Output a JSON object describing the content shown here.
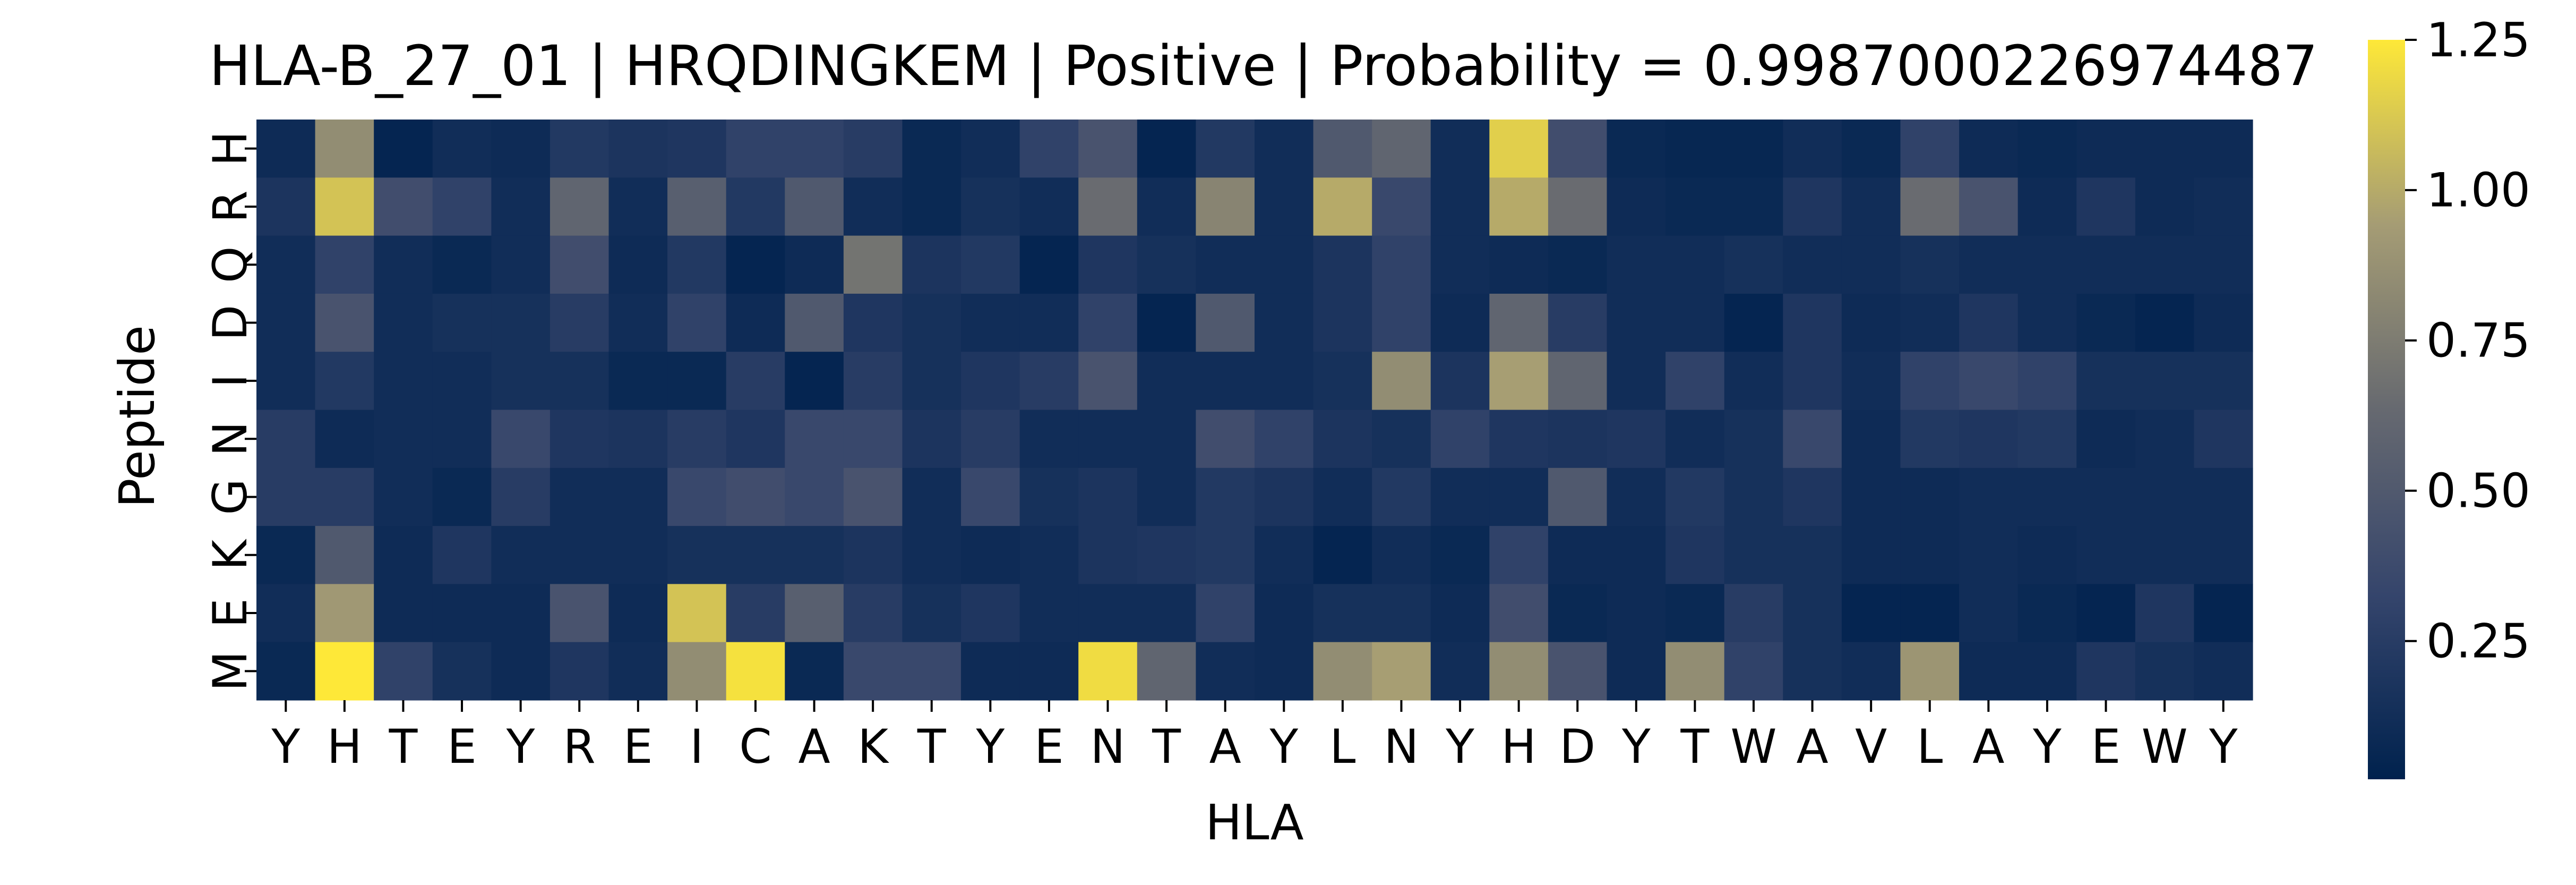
{
  "chart_data": {
    "type": "heatmap",
    "title": "HLA-B_27_01 | HRQDINGKEM | Positive | Probability = 0.9987000226974487",
    "xlabel": "HLA",
    "ylabel": "Peptide",
    "x_labels": [
      "Y",
      "H",
      "T",
      "E",
      "Y",
      "R",
      "E",
      "I",
      "C",
      "A",
      "K",
      "T",
      "Y",
      "E",
      "N",
      "T",
      "A",
      "Y",
      "L",
      "N",
      "Y",
      "H",
      "D",
      "Y",
      "T",
      "W",
      "A",
      "V",
      "L",
      "A",
      "Y",
      "E",
      "W",
      "Y"
    ],
    "y_labels": [
      "H",
      "R",
      "Q",
      "D",
      "I",
      "N",
      "G",
      "K",
      "E",
      "M"
    ],
    "colorbar": {
      "ticks": [
        0.25,
        0.5,
        0.75,
        1.0,
        1.25
      ],
      "tick_labels": [
        "0.25",
        "0.50",
        "0.75",
        "1.00",
        "1.25"
      ],
      "vmin": 0.02,
      "vmax": 1.25,
      "colormap": "cividis"
    },
    "grid": false,
    "legend": "colorbar-right",
    "values": [
      [
        0.1,
        0.85,
        0.05,
        0.12,
        0.1,
        0.22,
        0.18,
        0.2,
        0.3,
        0.3,
        0.25,
        0.08,
        0.12,
        0.3,
        0.45,
        0.05,
        0.22,
        0.12,
        0.5,
        0.6,
        0.12,
        1.15,
        0.4,
        0.08,
        0.06,
        0.06,
        0.12,
        0.08,
        0.3,
        0.1,
        0.08,
        0.1,
        0.1,
        0.1
      ],
      [
        0.18,
        1.1,
        0.4,
        0.3,
        0.12,
        0.6,
        0.12,
        0.55,
        0.22,
        0.5,
        0.12,
        0.08,
        0.15,
        0.12,
        0.65,
        0.12,
        0.8,
        0.12,
        1.0,
        0.35,
        0.12,
        1.0,
        0.65,
        0.1,
        0.08,
        0.08,
        0.2,
        0.12,
        0.65,
        0.45,
        0.1,
        0.2,
        0.1,
        0.12
      ],
      [
        0.12,
        0.3,
        0.12,
        0.08,
        0.12,
        0.4,
        0.1,
        0.22,
        0.05,
        0.1,
        0.7,
        0.18,
        0.22,
        0.05,
        0.2,
        0.15,
        0.12,
        0.12,
        0.18,
        0.3,
        0.12,
        0.1,
        0.08,
        0.12,
        0.12,
        0.15,
        0.12,
        0.12,
        0.15,
        0.12,
        0.12,
        0.12,
        0.12,
        0.12
      ],
      [
        0.12,
        0.45,
        0.12,
        0.15,
        0.15,
        0.25,
        0.12,
        0.3,
        0.1,
        0.5,
        0.2,
        0.15,
        0.12,
        0.12,
        0.3,
        0.05,
        0.5,
        0.12,
        0.18,
        0.3,
        0.1,
        0.6,
        0.25,
        0.12,
        0.12,
        0.05,
        0.2,
        0.1,
        0.12,
        0.2,
        0.12,
        0.08,
        0.05,
        0.1
      ],
      [
        0.12,
        0.22,
        0.12,
        0.12,
        0.15,
        0.15,
        0.08,
        0.08,
        0.25,
        0.05,
        0.25,
        0.15,
        0.2,
        0.25,
        0.45,
        0.12,
        0.12,
        0.12,
        0.15,
        0.85,
        0.18,
        0.95,
        0.6,
        0.12,
        0.3,
        0.12,
        0.2,
        0.12,
        0.3,
        0.35,
        0.3,
        0.15,
        0.15,
        0.15
      ],
      [
        0.25,
        0.1,
        0.12,
        0.12,
        0.35,
        0.2,
        0.18,
        0.25,
        0.2,
        0.35,
        0.35,
        0.18,
        0.25,
        0.12,
        0.12,
        0.12,
        0.4,
        0.3,
        0.18,
        0.15,
        0.3,
        0.2,
        0.18,
        0.2,
        0.12,
        0.15,
        0.35,
        0.1,
        0.22,
        0.2,
        0.22,
        0.1,
        0.12,
        0.2
      ],
      [
        0.25,
        0.25,
        0.12,
        0.08,
        0.25,
        0.12,
        0.12,
        0.35,
        0.4,
        0.35,
        0.45,
        0.12,
        0.35,
        0.15,
        0.18,
        0.12,
        0.22,
        0.18,
        0.12,
        0.22,
        0.12,
        0.12,
        0.5,
        0.12,
        0.22,
        0.15,
        0.2,
        0.1,
        0.1,
        0.12,
        0.12,
        0.12,
        0.12,
        0.12
      ],
      [
        0.08,
        0.5,
        0.1,
        0.2,
        0.12,
        0.12,
        0.12,
        0.15,
        0.15,
        0.15,
        0.18,
        0.12,
        0.1,
        0.12,
        0.18,
        0.2,
        0.22,
        0.12,
        0.05,
        0.12,
        0.08,
        0.3,
        0.1,
        0.1,
        0.2,
        0.15,
        0.15,
        0.1,
        0.1,
        0.12,
        0.1,
        0.12,
        0.12,
        0.12
      ],
      [
        0.12,
        0.92,
        0.1,
        0.1,
        0.1,
        0.45,
        0.1,
        1.1,
        0.25,
        0.55,
        0.25,
        0.15,
        0.2,
        0.12,
        0.12,
        0.12,
        0.3,
        0.1,
        0.15,
        0.15,
        0.1,
        0.4,
        0.08,
        0.1,
        0.08,
        0.25,
        0.15,
        0.05,
        0.05,
        0.12,
        0.08,
        0.05,
        0.2,
        0.05
      ],
      [
        0.08,
        1.25,
        0.3,
        0.15,
        0.1,
        0.2,
        0.12,
        0.85,
        1.22,
        0.08,
        0.35,
        0.35,
        0.1,
        0.1,
        1.2,
        0.6,
        0.12,
        0.1,
        0.85,
        0.95,
        0.12,
        0.85,
        0.45,
        0.1,
        0.85,
        0.3,
        0.15,
        0.12,
        0.9,
        0.1,
        0.1,
        0.2,
        0.15,
        0.12
      ]
    ]
  }
}
